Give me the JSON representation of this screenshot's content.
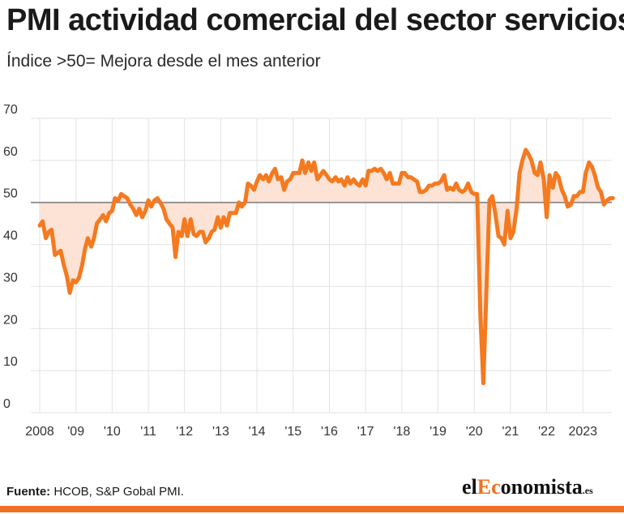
{
  "title": "PMI actividad comercial del sector servicios",
  "subtitle": "Índice >50= Mejora desde el mes anterior",
  "source_label": "Fuente:",
  "source_text": " HCOB, S&P Gobal PMI.",
  "logo": {
    "prefix": "el",
    "accent": "Ec",
    "rest": "onomista",
    "tld": ".es"
  },
  "colors": {
    "line": "#f47a20",
    "fill": "#fde3d6",
    "reference": "#888888",
    "grid": "#e2e2e2",
    "accent": "#f07020"
  },
  "chart_data": {
    "type": "line",
    "title": "PMI actividad comercial del sector servicios",
    "subtitle": "Índice >50= Mejora desde el mes anterior",
    "xlim": [
      2008.0,
      2023.8
    ],
    "ylim": [
      0,
      70
    ],
    "yticks": [
      0,
      10,
      20,
      30,
      40,
      50,
      60,
      70
    ],
    "xticks": [
      {
        "value": 2008,
        "label": "2008"
      },
      {
        "value": 2009,
        "label": "'09"
      },
      {
        "value": 2010,
        "label": "'10"
      },
      {
        "value": 2011,
        "label": "'11"
      },
      {
        "value": 2012,
        "label": "'12"
      },
      {
        "value": 2013,
        "label": "'13"
      },
      {
        "value": 2014,
        "label": "'14"
      },
      {
        "value": 2015,
        "label": "'15"
      },
      {
        "value": 2016,
        "label": "'16"
      },
      {
        "value": 2017,
        "label": "'17"
      },
      {
        "value": 2018,
        "label": "'18"
      },
      {
        "value": 2019,
        "label": "'19"
      },
      {
        "value": 2020,
        "label": "'20"
      },
      {
        "value": 2021,
        "label": "'21"
      },
      {
        "value": 2022,
        "label": "'22"
      },
      {
        "value": 2023,
        "label": "2023"
      }
    ],
    "reference_line": 50,
    "grid": "horizontal",
    "series": [
      {
        "points": [
          [
            2008.0,
            44.5
          ],
          [
            2008.08,
            45.5
          ],
          [
            2008.17,
            41.5
          ],
          [
            2008.25,
            43.0
          ],
          [
            2008.33,
            43.5
          ],
          [
            2008.42,
            37.5
          ],
          [
            2008.58,
            38.5
          ],
          [
            2008.67,
            35.0
          ],
          [
            2008.75,
            32.5
          ],
          [
            2008.83,
            28.5
          ],
          [
            2008.92,
            31.5
          ],
          [
            2009.0,
            31.0
          ],
          [
            2009.08,
            32.0
          ],
          [
            2009.17,
            35.0
          ],
          [
            2009.25,
            39.0
          ],
          [
            2009.33,
            41.5
          ],
          [
            2009.42,
            39.5
          ],
          [
            2009.5,
            41.5
          ],
          [
            2009.58,
            45.0
          ],
          [
            2009.67,
            46.0
          ],
          [
            2009.75,
            47.0
          ],
          [
            2009.83,
            45.5
          ],
          [
            2009.92,
            47.5
          ],
          [
            2010.0,
            48.0
          ],
          [
            2010.08,
            51.0
          ],
          [
            2010.17,
            50.5
          ],
          [
            2010.25,
            52.0
          ],
          [
            2010.33,
            51.5
          ],
          [
            2010.42,
            51.0
          ],
          [
            2010.5,
            49.5
          ],
          [
            2010.58,
            48.5
          ],
          [
            2010.67,
            47.0
          ],
          [
            2010.75,
            48.5
          ],
          [
            2010.83,
            46.5
          ],
          [
            2010.92,
            48.0
          ],
          [
            2011.0,
            50.5
          ],
          [
            2011.08,
            49.0
          ],
          [
            2011.17,
            50.5
          ],
          [
            2011.25,
            51.0
          ],
          [
            2011.33,
            50.0
          ],
          [
            2011.42,
            48.5
          ],
          [
            2011.5,
            46.0
          ],
          [
            2011.58,
            45.0
          ],
          [
            2011.67,
            44.0
          ],
          [
            2011.75,
            37.0
          ],
          [
            2011.83,
            43.0
          ],
          [
            2011.92,
            42.0
          ],
          [
            2012.0,
            46.0
          ],
          [
            2012.08,
            42.0
          ],
          [
            2012.17,
            46.0
          ],
          [
            2012.25,
            42.5
          ],
          [
            2012.33,
            42.0
          ],
          [
            2012.42,
            43.0
          ],
          [
            2012.5,
            43.0
          ],
          [
            2012.58,
            40.5
          ],
          [
            2012.67,
            41.5
          ],
          [
            2012.75,
            43.0
          ],
          [
            2012.83,
            43.5
          ],
          [
            2012.92,
            46.5
          ],
          [
            2013.0,
            44.0
          ],
          [
            2013.08,
            46.5
          ],
          [
            2013.17,
            44.5
          ],
          [
            2013.25,
            47.5
          ],
          [
            2013.33,
            47.5
          ],
          [
            2013.42,
            47.5
          ],
          [
            2013.5,
            50.0
          ],
          [
            2013.58,
            49.0
          ],
          [
            2013.67,
            50.0
          ],
          [
            2013.75,
            54.5
          ],
          [
            2013.83,
            54.0
          ],
          [
            2013.92,
            53.0
          ],
          [
            2014.0,
            55.0
          ],
          [
            2014.08,
            56.5
          ],
          [
            2014.17,
            55.5
          ],
          [
            2014.25,
            56.5
          ],
          [
            2014.33,
            55.0
          ],
          [
            2014.42,
            57.0
          ],
          [
            2014.5,
            58.0
          ],
          [
            2014.58,
            55.5
          ],
          [
            2014.67,
            56.0
          ],
          [
            2014.75,
            53.0
          ],
          [
            2014.83,
            55.0
          ],
          [
            2014.92,
            55.5
          ],
          [
            2015.0,
            57.0
          ],
          [
            2015.08,
            57.0
          ],
          [
            2015.17,
            57.0
          ],
          [
            2015.25,
            60.0
          ],
          [
            2015.33,
            57.0
          ],
          [
            2015.42,
            59.5
          ],
          [
            2015.5,
            57.5
          ],
          [
            2015.58,
            59.5
          ],
          [
            2015.67,
            55.5
          ],
          [
            2015.75,
            56.5
          ],
          [
            2015.83,
            57.5
          ],
          [
            2015.92,
            56.5
          ],
          [
            2016.0,
            55.5
          ],
          [
            2016.08,
            55.0
          ],
          [
            2016.17,
            56.0
          ],
          [
            2016.25,
            55.0
          ],
          [
            2016.33,
            55.5
          ],
          [
            2016.42,
            54.0
          ],
          [
            2016.5,
            56.0
          ],
          [
            2016.58,
            54.5
          ],
          [
            2016.67,
            55.5
          ],
          [
            2016.75,
            54.5
          ],
          [
            2016.83,
            54.0
          ],
          [
            2016.92,
            55.5
          ],
          [
            2017.0,
            54.0
          ],
          [
            2017.08,
            57.5
          ],
          [
            2017.17,
            57.5
          ],
          [
            2017.25,
            58.0
          ],
          [
            2017.33,
            57.5
          ],
          [
            2017.42,
            58.0
          ],
          [
            2017.5,
            57.0
          ],
          [
            2017.58,
            55.5
          ],
          [
            2017.67,
            57.0
          ],
          [
            2017.75,
            54.5
          ],
          [
            2017.83,
            54.5
          ],
          [
            2017.92,
            54.5
          ],
          [
            2018.0,
            57.0
          ],
          [
            2018.08,
            57.0
          ],
          [
            2018.17,
            56.0
          ],
          [
            2018.25,
            56.0
          ],
          [
            2018.33,
            55.5
          ],
          [
            2018.42,
            55.0
          ],
          [
            2018.5,
            52.5
          ],
          [
            2018.58,
            52.5
          ],
          [
            2018.67,
            53.0
          ],
          [
            2018.75,
            54.0
          ],
          [
            2018.83,
            54.0
          ],
          [
            2018.92,
            54.5
          ],
          [
            2019.0,
            54.5
          ],
          [
            2019.08,
            55.0
          ],
          [
            2019.17,
            56.5
          ],
          [
            2019.25,
            53.0
          ],
          [
            2019.33,
            53.5
          ],
          [
            2019.42,
            53.0
          ],
          [
            2019.5,
            54.5
          ],
          [
            2019.58,
            53.0
          ],
          [
            2019.67,
            52.5
          ],
          [
            2019.75,
            53.0
          ],
          [
            2019.83,
            54.5
          ],
          [
            2019.92,
            52.5
          ],
          [
            2020.0,
            52.0
          ],
          [
            2020.08,
            52.0
          ],
          [
            2020.17,
            23.0
          ],
          [
            2020.25,
            7.0
          ],
          [
            2020.33,
            27.0
          ],
          [
            2020.42,
            50.5
          ],
          [
            2020.5,
            51.5
          ],
          [
            2020.58,
            47.5
          ],
          [
            2020.67,
            42.0
          ],
          [
            2020.75,
            41.5
          ],
          [
            2020.83,
            40.0
          ],
          [
            2020.92,
            48.0
          ],
          [
            2021.0,
            41.5
          ],
          [
            2021.08,
            43.0
          ],
          [
            2021.17,
            48.5
          ],
          [
            2021.25,
            57.0
          ],
          [
            2021.33,
            60.0
          ],
          [
            2021.42,
            62.5
          ],
          [
            2021.5,
            61.5
          ],
          [
            2021.58,
            60.0
          ],
          [
            2021.67,
            57.0
          ],
          [
            2021.75,
            56.5
          ],
          [
            2021.83,
            59.5
          ],
          [
            2021.92,
            55.5
          ],
          [
            2022.0,
            46.5
          ],
          [
            2022.08,
            56.5
          ],
          [
            2022.17,
            53.5
          ],
          [
            2022.25,
            57.0
          ],
          [
            2022.33,
            56.0
          ],
          [
            2022.42,
            53.0
          ],
          [
            2022.5,
            51.5
          ],
          [
            2022.58,
            49.0
          ],
          [
            2022.67,
            49.5
          ],
          [
            2022.75,
            51.5
          ],
          [
            2022.83,
            51.5
          ],
          [
            2022.92,
            52.5
          ],
          [
            2023.0,
            52.5
          ],
          [
            2023.08,
            57.0
          ],
          [
            2023.17,
            59.5
          ],
          [
            2023.25,
            58.5
          ],
          [
            2023.33,
            56.5
          ],
          [
            2023.42,
            53.5
          ],
          [
            2023.5,
            52.5
          ],
          [
            2023.58,
            49.5
          ],
          [
            2023.67,
            50.5
          ],
          [
            2023.75,
            51.0
          ],
          [
            2023.83,
            51.0
          ]
        ]
      }
    ]
  }
}
